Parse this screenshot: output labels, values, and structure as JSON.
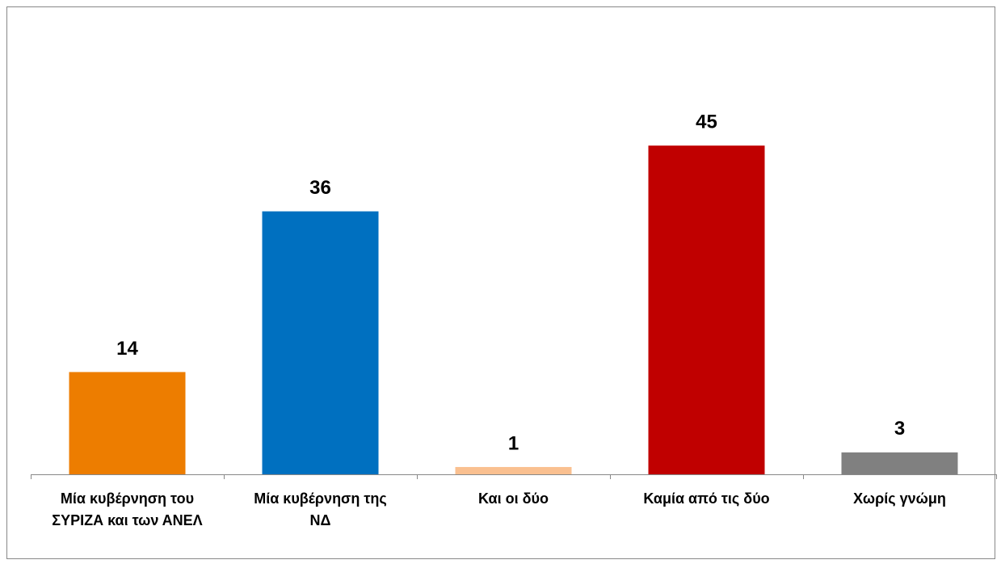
{
  "chart_data": {
    "type": "bar",
    "categories": [
      "Μία κυβέρνηση του\nΣΥΡΙΖΑ και των ΑΝΕΛ",
      "Μία κυβέρνηση της\nΝΔ",
      "Και οι δύο",
      "Καμία από τις δύο",
      "Χωρίς γνώμη"
    ],
    "values": [
      14,
      36,
      1,
      45,
      3
    ],
    "colors": [
      "#ed7d00",
      "#0070c0",
      "#fac090",
      "#c00000",
      "#808080"
    ],
    "ylim": [
      0,
      50
    ]
  }
}
